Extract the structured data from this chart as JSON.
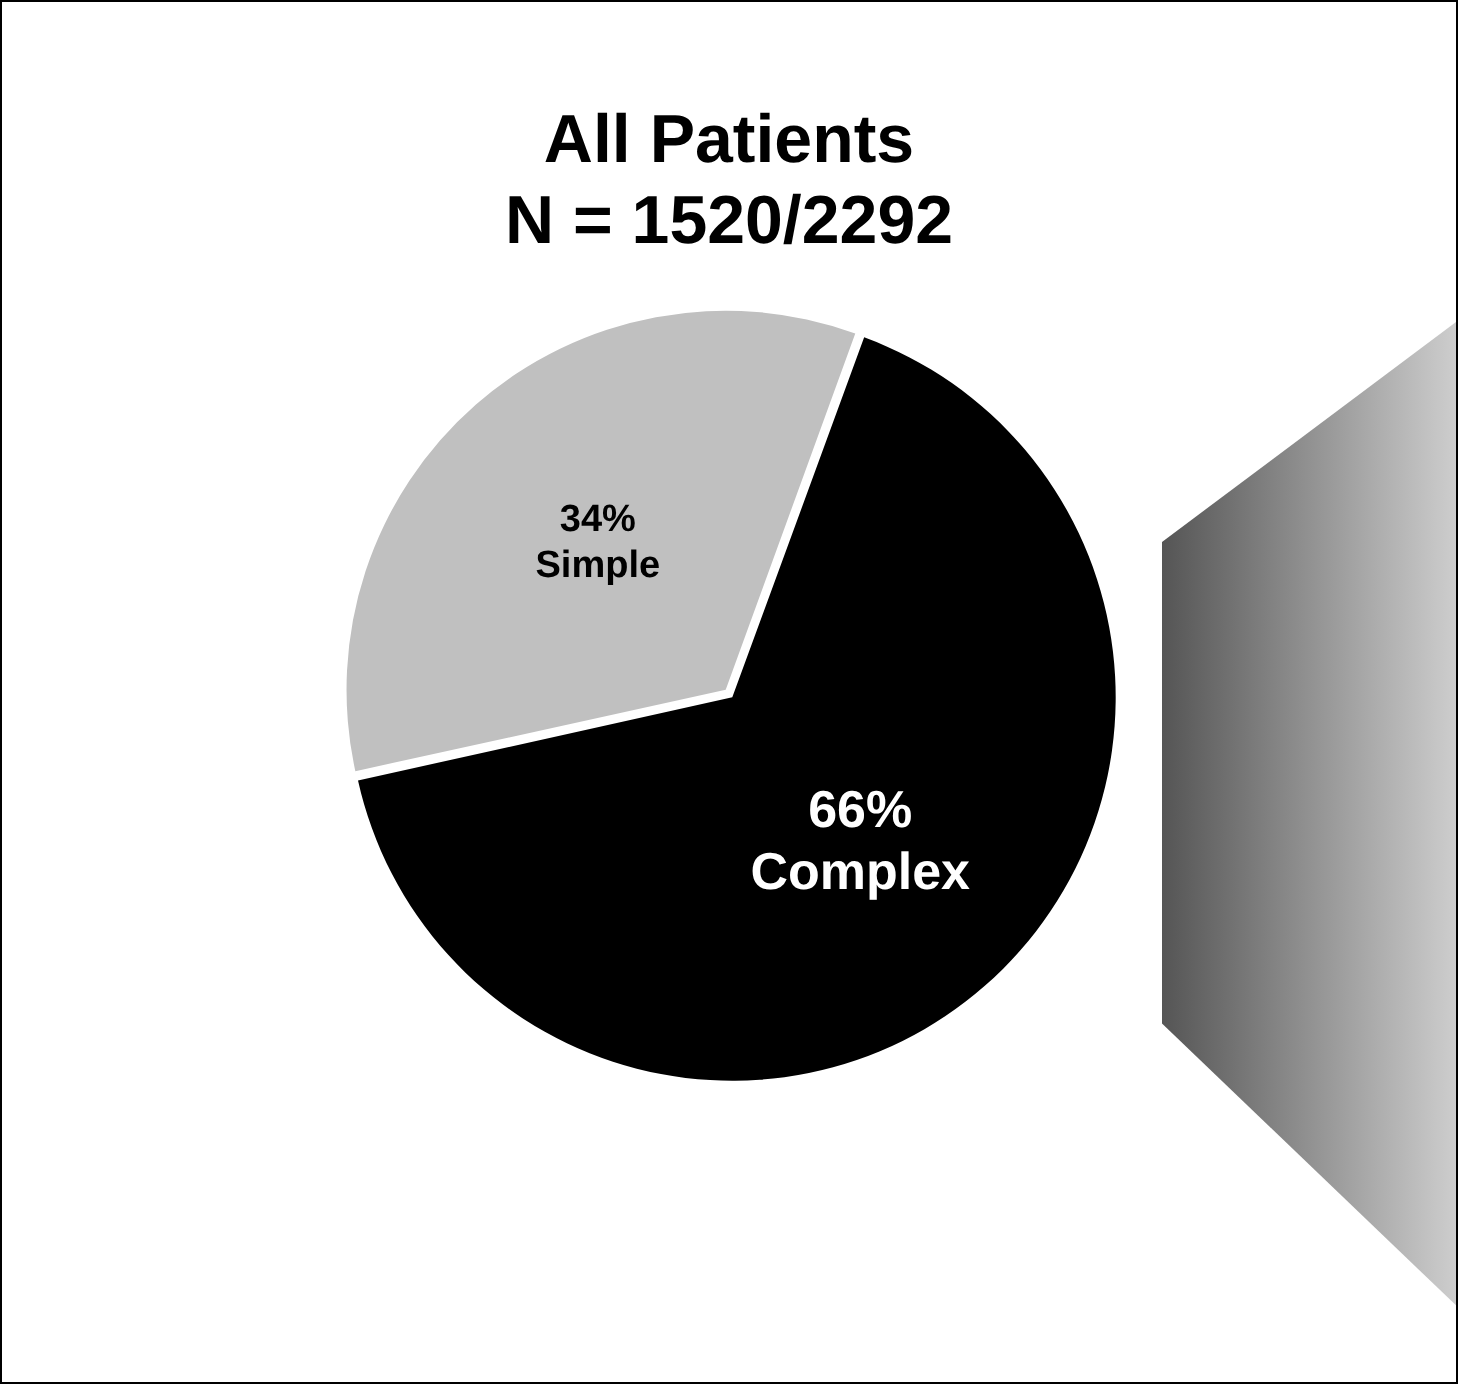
{
  "chart_data": {
    "type": "pie",
    "title": "All Patients",
    "subtitle": "N = 1520/2292",
    "categories": [
      "Complex",
      "Simple"
    ],
    "values": [
      66,
      34
    ],
    "colors": [
      "#000000",
      "#c0c0c0"
    ],
    "value_labels": [
      "66%",
      "34%"
    ],
    "legend": false
  }
}
